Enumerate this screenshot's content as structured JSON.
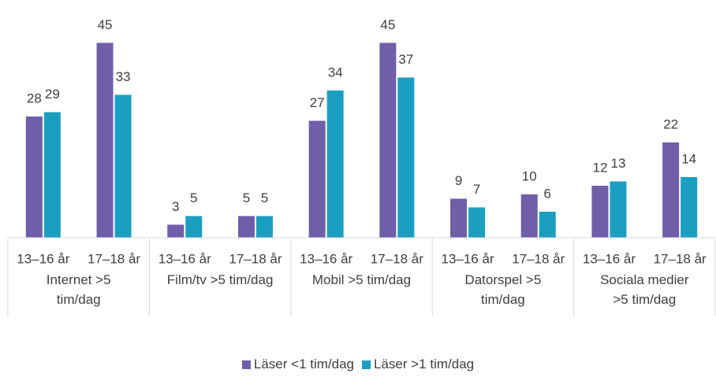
{
  "chart_data": {
    "type": "bar",
    "categories": [
      "13–16 år",
      "17–18 år",
      "13–16 år",
      "17–18 år",
      "13–16 år",
      "17–18 år",
      "13–16 år",
      "17–18 år",
      "13–16 år",
      "17–18 år"
    ],
    "groups": [
      "Internet >5 tim/dag",
      "Film/tv >5 tim/dag",
      "Mobil >5 tim/dag",
      "Datorspel >5 tim/dag",
      "Sociala medier >5 tim/dag"
    ],
    "series": [
      {
        "name": "Läser <1 tim/dag",
        "color": "#6f5ea8",
        "values": [
          28,
          45,
          3,
          5,
          27,
          45,
          9,
          10,
          12,
          22
        ]
      },
      {
        "name": "Läser >1 tim/dag",
        "color": "#1a9fc0",
        "values": [
          29,
          33,
          5,
          5,
          34,
          37,
          7,
          6,
          13,
          14
        ]
      }
    ],
    "ylim": [
      0,
      50
    ],
    "legend": "bottom"
  }
}
